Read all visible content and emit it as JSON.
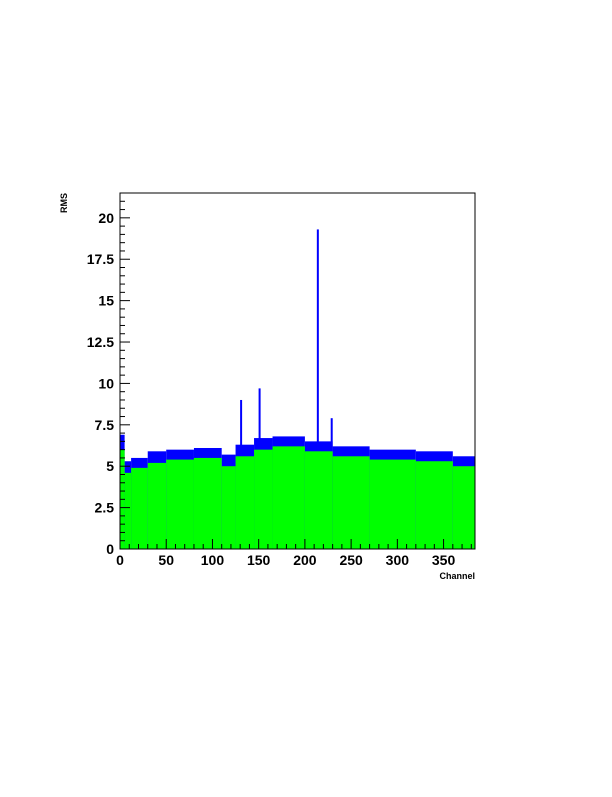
{
  "chart_data": {
    "type": "bar",
    "title": "",
    "xlabel": "Channel",
    "ylabel": "RMS",
    "xlim": [
      0,
      384
    ],
    "ylim": [
      0,
      21.5
    ],
    "x_ticks": [
      0,
      50,
      100,
      150,
      200,
      250,
      300,
      350
    ],
    "y_ticks": [
      0,
      2.5,
      5,
      7.5,
      10,
      12.5,
      15,
      17.5,
      20
    ],
    "x_tick_labels": [
      "0",
      "50",
      "100",
      "150",
      "200",
      "250",
      "300",
      "350"
    ],
    "y_tick_labels": [
      "0",
      "2.5",
      "5",
      "7.5",
      "10",
      "12.5",
      "15",
      "17.5",
      "20"
    ],
    "grid": false,
    "legend": "none",
    "series": [
      {
        "color": "#0000ff",
        "segments": [
          {
            "x_from": 0,
            "x_to": 5,
            "value": 6.9
          },
          {
            "x_from": 5,
            "x_to": 12,
            "value": 5.3
          },
          {
            "x_from": 12,
            "x_to": 30,
            "value": 5.5
          },
          {
            "x_from": 30,
            "x_to": 50,
            "value": 5.9
          },
          {
            "x_from": 50,
            "x_to": 80,
            "value": 6.0
          },
          {
            "x_from": 80,
            "x_to": 110,
            "value": 6.1
          },
          {
            "x_from": 110,
            "x_to": 125,
            "value": 5.7
          },
          {
            "x_from": 125,
            "x_to": 145,
            "value": 6.3
          },
          {
            "x_from": 145,
            "x_to": 165,
            "value": 6.7
          },
          {
            "x_from": 165,
            "x_to": 200,
            "value": 6.8
          },
          {
            "x_from": 200,
            "x_to": 230,
            "value": 6.5
          },
          {
            "x_from": 230,
            "x_to": 270,
            "value": 6.2
          },
          {
            "x_from": 270,
            "x_to": 320,
            "value": 6.0
          },
          {
            "x_from": 320,
            "x_to": 360,
            "value": 5.9
          },
          {
            "x_from": 360,
            "x_to": 384,
            "value": 5.6
          }
        ],
        "spikes": [
          {
            "x": 131,
            "value": 9.0
          },
          {
            "x": 151,
            "value": 9.7
          },
          {
            "x": 214,
            "value": 19.3
          },
          {
            "x": 229,
            "value": 7.9
          }
        ]
      },
      {
        "color": "#00ff00",
        "segments": [
          {
            "x_from": 0,
            "x_to": 5,
            "value": 6.0
          },
          {
            "x_from": 5,
            "x_to": 12,
            "value": 4.6
          },
          {
            "x_from": 12,
            "x_to": 30,
            "value": 4.9
          },
          {
            "x_from": 30,
            "x_to": 50,
            "value": 5.2
          },
          {
            "x_from": 50,
            "x_to": 80,
            "value": 5.4
          },
          {
            "x_from": 80,
            "x_to": 110,
            "value": 5.5
          },
          {
            "x_from": 110,
            "x_to": 125,
            "value": 5.0
          },
          {
            "x_from": 125,
            "x_to": 145,
            "value": 5.6
          },
          {
            "x_from": 145,
            "x_to": 165,
            "value": 6.0
          },
          {
            "x_from": 165,
            "x_to": 200,
            "value": 6.2
          },
          {
            "x_from": 200,
            "x_to": 230,
            "value": 5.9
          },
          {
            "x_from": 230,
            "x_to": 270,
            "value": 5.6
          },
          {
            "x_from": 270,
            "x_to": 320,
            "value": 5.4
          },
          {
            "x_from": 320,
            "x_to": 360,
            "value": 5.3
          },
          {
            "x_from": 360,
            "x_to": 384,
            "value": 5.0
          }
        ],
        "spikes": []
      }
    ]
  }
}
